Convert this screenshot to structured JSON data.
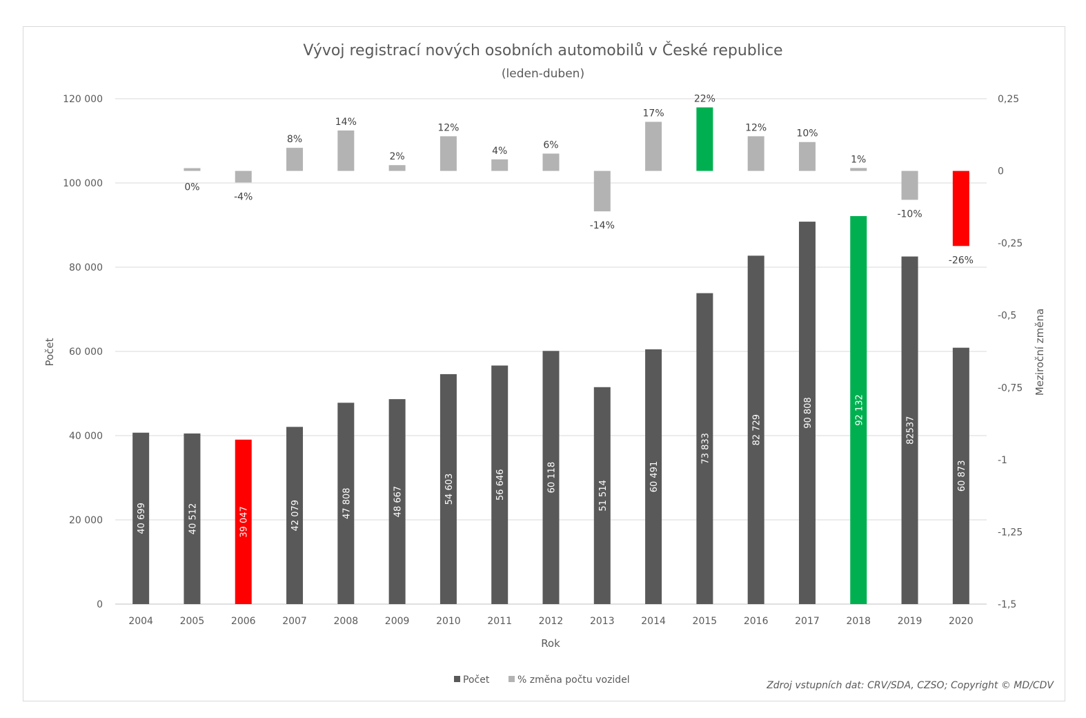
{
  "chart_data": {
    "type": "bar",
    "title": "Vývoj registrací nových osobních automobilů v České republice",
    "subtitle": "(leden-duben)",
    "xlabel": "Rok",
    "ylabel": "Počet",
    "y2label": "Meziroční změna",
    "ylim": [
      0,
      120000
    ],
    "y2lim": [
      -1.5,
      0.25
    ],
    "y_ticks": [
      "0",
      "20 000",
      "40 000",
      "60 000",
      "80 000",
      "100 000",
      "120 000"
    ],
    "y2_ticks": [
      "-1,5",
      "-1,25",
      "-1",
      "-0,75",
      "-0,5",
      "-0,25",
      "0",
      "0,25"
    ],
    "grid": true,
    "legend_position": "bottom",
    "categories": [
      "2004",
      "2005",
      "2006",
      "2007",
      "2008",
      "2009",
      "2010",
      "2011",
      "2012",
      "2013",
      "2014",
      "2015",
      "2016",
      "2017",
      "2018",
      "2019",
      "2020"
    ],
    "series": [
      {
        "name": "Počet",
        "axis": "left",
        "color": "#595959",
        "values": [
          40699,
          40512,
          39047,
          42079,
          47808,
          48667,
          54603,
          56646,
          60118,
          51514,
          60491,
          73833,
          82729,
          90808,
          92132,
          82537,
          60873
        ],
        "labels": [
          "40 699",
          "40 512",
          "39 047",
          "42 079",
          "47 808",
          "48 667",
          "54 603",
          "56 646",
          "60 118",
          "51 514",
          "60 491",
          "73 833",
          "82 729",
          "90 808",
          "92 132",
          "82537",
          "60 873"
        ],
        "highlight": {
          "2006": "#ff0000",
          "2018": "#00b050"
        }
      },
      {
        "name": "% změna počtu vozidel",
        "axis": "right",
        "color": "#b3b3b3",
        "values": [
          null,
          0,
          -0.04,
          0.08,
          0.14,
          0.02,
          0.12,
          0.04,
          0.06,
          -0.14,
          0.17,
          0.22,
          0.12,
          0.1,
          0.01,
          -0.1,
          -0.26
        ],
        "labels": [
          "",
          "0%",
          "-4%",
          "8%",
          "14%",
          "2%",
          "12%",
          "4%",
          "6%",
          "-14%",
          "17%",
          "22%",
          "12%",
          "10%",
          "1%",
          "-10%",
          "-26%"
        ],
        "highlight": {
          "2015": "#00b050",
          "2020": "#ff0000"
        }
      }
    ],
    "source": "Zdroj vstupních dat: CRV/SDA, CZSO; Copyright © MD/CDV"
  }
}
